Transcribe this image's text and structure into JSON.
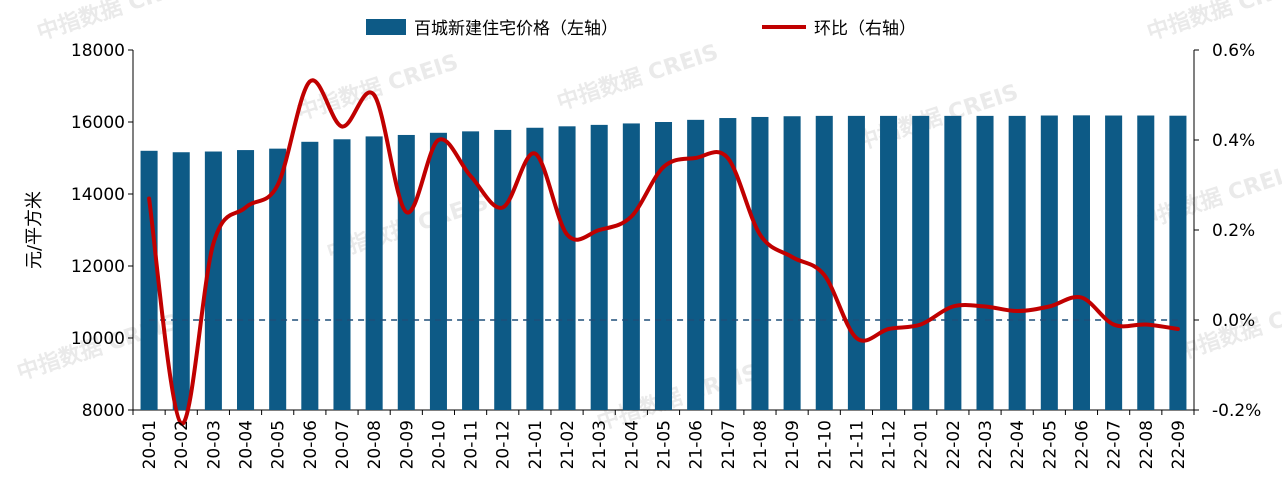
{
  "chart_data": {
    "type": "bar",
    "categories": [
      "20-01",
      "20-02",
      "20-03",
      "20-04",
      "20-05",
      "20-06",
      "20-07",
      "20-08",
      "20-09",
      "20-10",
      "20-11",
      "20-12",
      "21-01",
      "21-02",
      "21-03",
      "21-04",
      "21-05",
      "21-06",
      "21-07",
      "21-08",
      "21-09",
      "21-10",
      "21-11",
      "21-12",
      "22-01",
      "22-02",
      "22-03",
      "22-04",
      "22-05",
      "22-06",
      "22-07",
      "22-08",
      "22-09"
    ],
    "series": [
      {
        "name": "百城新建住宅价格（左轴）",
        "type": "bar",
        "axis": "left",
        "color": "#0d5a86",
        "values": [
          15200,
          15160,
          15180,
          15220,
          15260,
          15450,
          15520,
          15600,
          15640,
          15700,
          15740,
          15780,
          15840,
          15880,
          15920,
          15960,
          16000,
          16060,
          16110,
          16140,
          16160,
          16170,
          16170,
          16170,
          16170,
          16170,
          16170,
          16170,
          16180,
          16185,
          16180,
          16180,
          16175
        ]
      },
      {
        "name": "环比（右轴）",
        "type": "line",
        "axis": "right",
        "color": "#c00000",
        "values": [
          0.27,
          -0.23,
          0.17,
          0.25,
          0.3,
          0.53,
          0.43,
          0.5,
          0.24,
          0.4,
          0.32,
          0.25,
          0.37,
          0.19,
          0.2,
          0.23,
          0.34,
          0.36,
          0.36,
          0.19,
          0.14,
          0.1,
          -0.04,
          -0.02,
          -0.01,
          0.03,
          0.03,
          0.02,
          0.03,
          0.05,
          -0.01,
          -0.01,
          -0.02
        ]
      }
    ],
    "ylabel": "元/平方米",
    "ylim_left": [
      8000,
      18000
    ],
    "yticks_left": [
      "8000",
      "10000",
      "12000",
      "14000",
      "16000",
      "18000"
    ],
    "ylim_right": [
      -0.2,
      0.6
    ],
    "yticks_right": [
      "-0.2%",
      "0.0%",
      "0.2%",
      "0.4%",
      "0.6%"
    ],
    "reference_line": {
      "axis": "right",
      "value": 0.0,
      "style": "dashed"
    },
    "legend_position": "top-center",
    "grid": false
  },
  "watermark": {
    "cn": "中指数据",
    "en": "CREIS"
  }
}
